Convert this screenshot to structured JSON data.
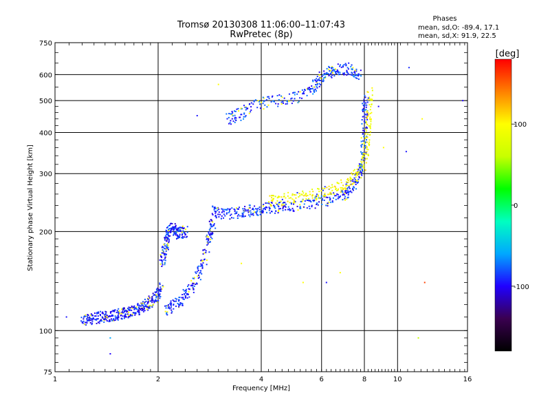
{
  "chart_data": {
    "type": "scatter",
    "title": "Tromsø 20130308 11:06:00–11:07:43",
    "subtitle": "RwPretec (8p)",
    "xlabel": "Frequency [MHz]",
    "ylabel": "Stationary phase Virtual Height [km]",
    "x_scale": "log",
    "y_scale": "log",
    "xlim": [
      1,
      16
    ],
    "ylim": [
      75,
      750
    ],
    "x_ticks": [
      1,
      2,
      4,
      6,
      8,
      10,
      16
    ],
    "x_tick_labels": [
      "1",
      "2",
      "4",
      "6",
      "8",
      "10",
      "16"
    ],
    "y_ticks": [
      75,
      100,
      200,
      300,
      400,
      500,
      600,
      750
    ],
    "y_tick_labels": [
      "75",
      "100",
      "200",
      "300",
      "400",
      "500",
      "600",
      "750"
    ],
    "x_gridlines": [
      2,
      4,
      6,
      8,
      10
    ],
    "y_gridlines": [
      100,
      200,
      300,
      400,
      500,
      600
    ],
    "grid": true,
    "stats": {
      "heading": "Phases",
      "o_line": "mean, sd,O: -89.4, 17.1",
      "x_line": "mean, sd,X:  91.9, 22.5"
    },
    "colorbar": {
      "label": "[deg]",
      "range": [
        -180,
        180
      ],
      "tick_values": [
        100,
        0,
        -100
      ],
      "tick_labels": [
        "100",
        "0",
        "-100"
      ],
      "colors": [
        "#000000",
        "#3a0050",
        "#2000ff",
        "#00a8ff",
        "#00ffc0",
        "#00ff00",
        "#c8ff00",
        "#ffff00",
        "#ff8000",
        "#ff0000"
      ]
    },
    "series": [
      {
        "description_trace": "o-mode low segment",
        "points": [
          [
            1.2,
            107
          ],
          [
            1.25,
            108
          ],
          [
            1.3,
            109
          ],
          [
            1.35,
            110
          ],
          [
            1.4,
            110
          ],
          [
            1.45,
            111
          ],
          [
            1.5,
            112
          ],
          [
            1.55,
            112
          ],
          [
            1.6,
            113
          ],
          [
            1.65,
            114
          ],
          [
            1.7,
            115
          ],
          [
            1.75,
            116
          ],
          [
            1.8,
            118
          ],
          [
            1.85,
            120
          ],
          [
            1.9,
            122
          ],
          [
            1.95,
            125
          ],
          [
            2.0,
            130
          ],
          [
            2.05,
            138
          ]
        ],
        "phase": -95
      },
      {
        "description_trace": "o-mode E-F transition",
        "points": [
          [
            2.05,
            160
          ],
          [
            2.08,
            170
          ],
          [
            2.1,
            180
          ],
          [
            2.12,
            190
          ],
          [
            2.15,
            200
          ],
          [
            2.2,
            205
          ],
          [
            2.25,
            200
          ],
          [
            2.3,
            198
          ],
          [
            2.35,
            198
          ],
          [
            2.4,
            200
          ]
        ],
        "phase": -90
      },
      {
        "description_trace": "x-mode low segment",
        "points": [
          [
            2.1,
            115
          ],
          [
            2.2,
            118
          ],
          [
            2.3,
            122
          ],
          [
            2.4,
            128
          ],
          [
            2.5,
            135
          ],
          [
            2.6,
            145
          ],
          [
            2.7,
            160
          ],
          [
            2.8,
            185
          ],
          [
            2.85,
            200
          ],
          [
            2.9,
            215
          ]
        ],
        "phase": -92
      },
      {
        "description_trace": "F-layer main trace",
        "points": [
          [
            2.9,
            230
          ],
          [
            3.0,
            228
          ],
          [
            3.2,
            226
          ],
          [
            3.4,
            228
          ],
          [
            3.6,
            230
          ],
          [
            3.8,
            232
          ],
          [
            4.0,
            234
          ],
          [
            4.3,
            236
          ],
          [
            4.6,
            238
          ],
          [
            5.0,
            240
          ],
          [
            5.5,
            243
          ],
          [
            6.0,
            247
          ],
          [
            6.5,
            252
          ],
          [
            7.0,
            260
          ],
          [
            7.3,
            270
          ],
          [
            7.6,
            285
          ],
          [
            7.8,
            305
          ],
          [
            7.95,
            340
          ],
          [
            8.0,
            400
          ],
          [
            8.05,
            460
          ],
          [
            8.05,
            520
          ]
        ],
        "phase": -88
      },
      {
        "description_trace": "x-mode F trace",
        "points": [
          [
            4.2,
            248
          ],
          [
            4.5,
            250
          ],
          [
            5.0,
            254
          ],
          [
            5.5,
            258
          ],
          [
            6.0,
            262
          ],
          [
            6.5,
            268
          ],
          [
            7.0,
            278
          ],
          [
            7.5,
            292
          ],
          [
            7.9,
            315
          ],
          [
            8.1,
            350
          ],
          [
            8.2,
            400
          ],
          [
            8.25,
            460
          ],
          [
            8.3,
            540
          ]
        ],
        "phase": 95
      },
      {
        "description_trace": "upper multiple-hop trace",
        "points": [
          [
            3.2,
            440
          ],
          [
            3.4,
            450
          ],
          [
            3.6,
            465
          ],
          [
            4.0,
            490
          ],
          [
            4.5,
            500
          ],
          [
            5.0,
            510
          ],
          [
            5.5,
            530
          ],
          [
            5.8,
            560
          ],
          [
            6.0,
            590
          ],
          [
            6.3,
            610
          ],
          [
            6.6,
            620
          ],
          [
            7.0,
            625
          ],
          [
            7.4,
            615
          ],
          [
            7.8,
            600
          ]
        ],
        "phase": -85
      }
    ],
    "outliers": [
      [
        1.08,
        110,
        -95
      ],
      [
        1.45,
        95,
        -60
      ],
      [
        1.45,
        85,
        -100
      ],
      [
        2.6,
        450,
        -95
      ],
      [
        3.0,
        560,
        100
      ],
      [
        3.5,
        160,
        100
      ],
      [
        4.6,
        240,
        130
      ],
      [
        5.3,
        140,
        100
      ],
      [
        6.2,
        140,
        -95
      ],
      [
        6.8,
        150,
        100
      ],
      [
        7.2,
        650,
        -95
      ],
      [
        8.8,
        480,
        -100
      ],
      [
        9.1,
        360,
        100
      ],
      [
        10.6,
        350,
        -95
      ],
      [
        10.8,
        630,
        -90
      ],
      [
        11.5,
        95,
        60
      ],
      [
        11.8,
        440,
        100
      ],
      [
        12.0,
        140,
        160
      ],
      [
        15.5,
        500,
        -100
      ],
      [
        16.0,
        600,
        100
      ]
    ]
  }
}
